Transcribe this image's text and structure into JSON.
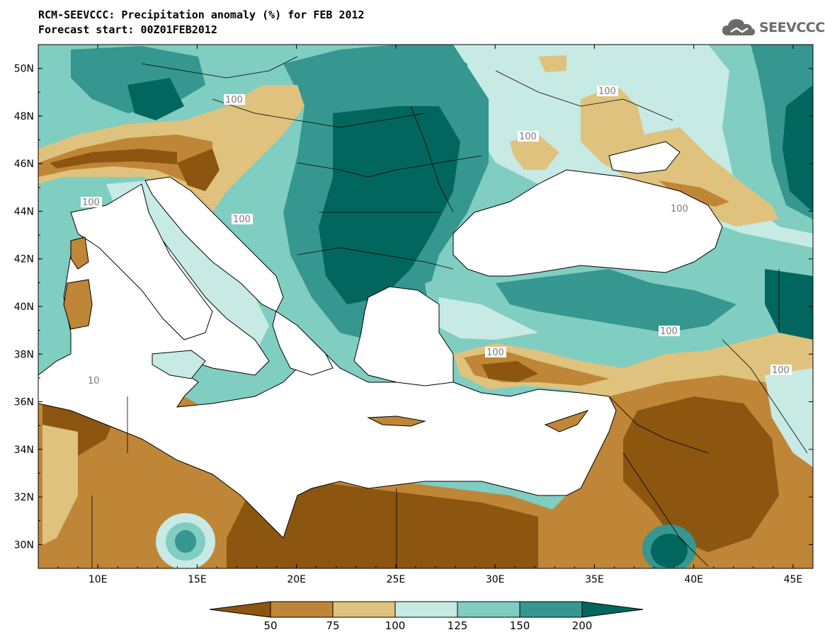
{
  "title": {
    "line1": "RCM-SEEVCCC: Precipitation anomaly (%) for FEB 2012",
    "line2": "Forecast start: 00Z01FEB2012"
  },
  "logo": {
    "text": "SEEVCCC",
    "icon": "cloud-icon"
  },
  "map": {
    "lon_range": [
      7,
      46
    ],
    "lat_range": [
      29,
      51
    ],
    "lat_ticks": [
      "50N",
      "48N",
      "46N",
      "44N",
      "42N",
      "40N",
      "38N",
      "36N",
      "34N",
      "32N",
      "30N"
    ],
    "lon_ticks": [
      "10E",
      "15E",
      "20E",
      "25E",
      "30E",
      "35E",
      "40E",
      "45E"
    ],
    "contour_labels": [
      "100",
      "100",
      "100",
      "100",
      "100",
      "100",
      "100",
      "100",
      "100",
      "10"
    ]
  },
  "legend": {
    "labels": [
      "50",
      "75",
      "100",
      "125",
      "150",
      "200"
    ],
    "colors": [
      "#8c5510",
      "#bf8637",
      "#dfc27d",
      "#c7eae5",
      "#80cdc1",
      "#35978f",
      "#01665e"
    ]
  }
}
